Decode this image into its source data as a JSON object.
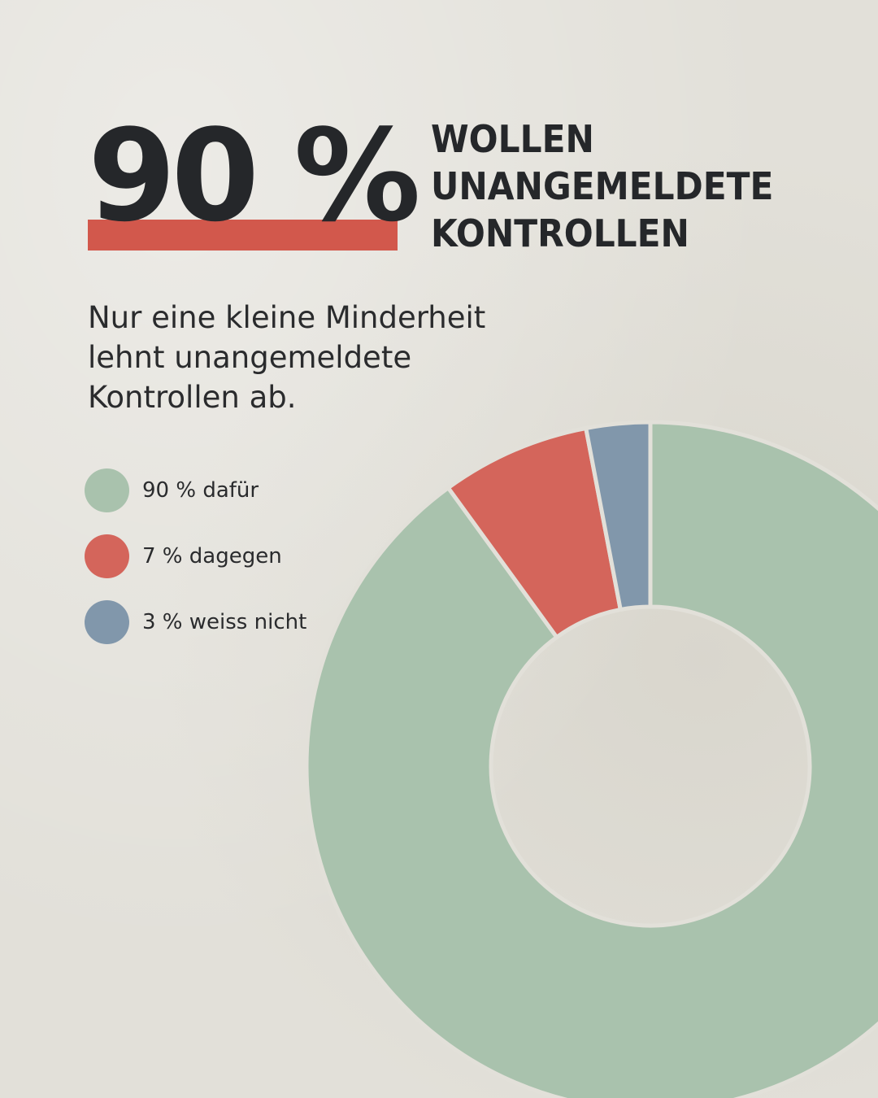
{
  "headline": {
    "big_number": "90 %",
    "lines": [
      "WOLLEN",
      "UNANGEMELDETE",
      "KONTROLLEN"
    ]
  },
  "subtitle": {
    "lines": [
      "Nur eine kleine Minderheit",
      "lehnt unangemeldete",
      "Kontrollen ab."
    ]
  },
  "legend": {
    "items": [
      {
        "label": "90 % dafür",
        "color": "#a9c2ad"
      },
      {
        "label": "7 % dagegen",
        "color": "#d4655b"
      },
      {
        "label": "3 % weiss nicht",
        "color": "#8197ab"
      }
    ]
  },
  "colors": {
    "background": "#e2e0d9",
    "accent_bar": "#d2584c",
    "text": "#25272a"
  },
  "chart_data": {
    "type": "pie",
    "donut": true,
    "categories": [
      "dafür",
      "dagegen",
      "weiss nicht"
    ],
    "values": [
      90,
      7,
      3
    ],
    "colors": [
      "#a9c2ad",
      "#d4655b",
      "#8197ab"
    ],
    "start_angle_deg": 0,
    "direction": "clockwise"
  }
}
